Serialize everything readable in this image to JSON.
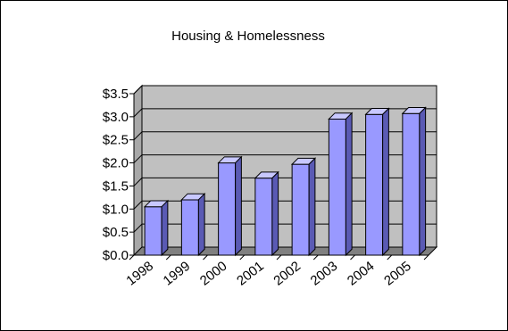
{
  "chart_data": {
    "type": "bar",
    "title": "Housing & Homelessness",
    "categories": [
      "1998",
      "1999",
      "2000",
      "2001",
      "2002",
      "2003",
      "2004",
      "2005"
    ],
    "values": [
      1.05,
      1.2,
      2.0,
      1.67,
      1.97,
      2.95,
      3.05,
      3.07
    ],
    "y_tick_labels": [
      "$0.0",
      "$0.5",
      "$1.0",
      "$1.5",
      "$2.0",
      "$2.5",
      "$3.0",
      "$3.5"
    ],
    "ylim": [
      0,
      3.5
    ],
    "xlabel": "",
    "ylabel": "",
    "grid": true,
    "legend": "none",
    "style": "3d-column",
    "colors": {
      "bar_front": "#9999FF",
      "bar_side": "#5A5AB4",
      "bar_top": "#C8C8FF",
      "back_wall": "#C0C0C0",
      "side_wall": "#A8A8A8",
      "floor": "#808080",
      "gridline": "#000000"
    }
  }
}
